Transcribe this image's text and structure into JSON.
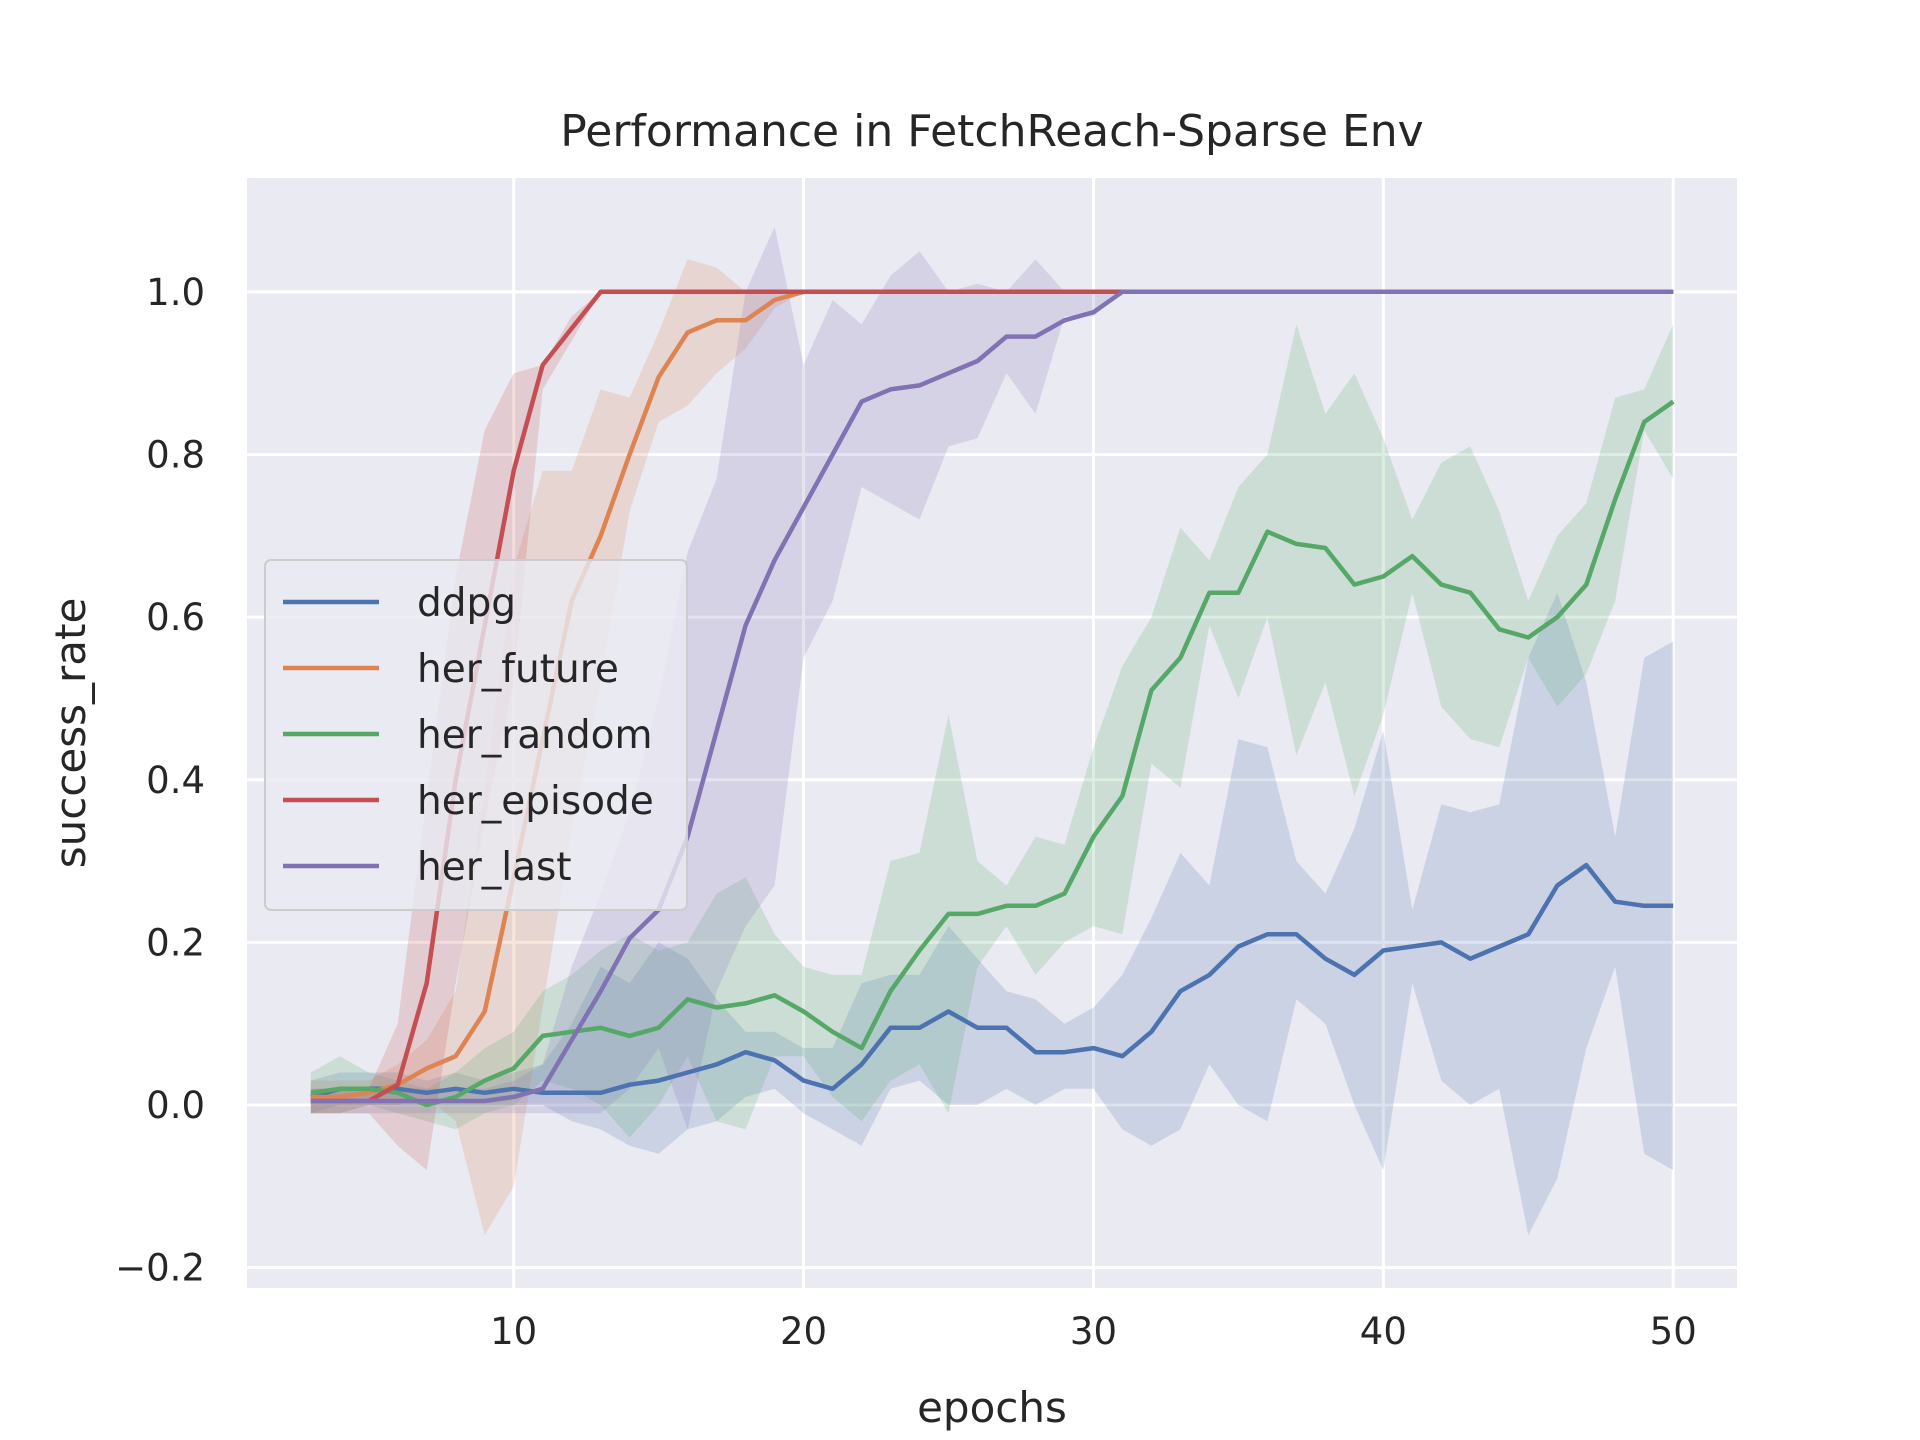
{
  "chart_data": {
    "type": "line",
    "title": "Performance in FetchReach-Sparse Env",
    "xlabel": "epochs",
    "ylabel": "success_rate",
    "xlim": [
      0.8,
      52.2
    ],
    "ylim": [
      -0.225,
      1.14
    ],
    "xticks": [
      10,
      20,
      30,
      40,
      50
    ],
    "yticks": [
      -0.2,
      0.0,
      0.2,
      0.4,
      0.6,
      0.8,
      1.0
    ],
    "ytick_labels": [
      "−0.2",
      "0.0",
      "0.2",
      "0.4",
      "0.6",
      "0.8",
      "1.0"
    ],
    "grid": true,
    "legend_position": "center-left",
    "x": [
      3,
      4,
      5,
      6,
      7,
      8,
      9,
      10,
      11,
      12,
      13,
      14,
      15,
      16,
      17,
      18,
      19,
      20,
      21,
      22,
      23,
      24,
      25,
      26,
      27,
      28,
      29,
      30,
      31,
      32,
      33,
      34,
      35,
      36,
      37,
      38,
      39,
      40,
      41,
      42,
      43,
      44,
      45,
      46,
      47,
      48,
      49,
      50
    ],
    "series": [
      {
        "name": "ddpg",
        "color": "#4c72b0",
        "values": [
          0.01,
          0.02,
          0.02,
          0.02,
          0.015,
          0.02,
          0.015,
          0.02,
          0.015,
          0.015,
          0.015,
          0.025,
          0.03,
          0.04,
          0.05,
          0.065,
          0.055,
          0.03,
          0.02,
          0.05,
          0.095,
          0.095,
          0.115,
          0.095,
          0.095,
          0.065,
          0.065,
          0.07,
          0.06,
          0.09,
          0.14,
          0.16,
          0.195,
          0.21,
          0.21,
          0.18,
          0.16,
          0.19,
          0.195,
          0.2,
          0.18,
          0.195,
          0.21,
          0.27,
          0.295,
          0.25,
          0.245,
          0.245
        ],
        "lower": [
          -0.01,
          0.0,
          0.0,
          0.0,
          0.0,
          0.0,
          0.0,
          0.0,
          0.0,
          -0.02,
          -0.03,
          -0.05,
          -0.06,
          -0.03,
          -0.02,
          0.01,
          0.02,
          -0.01,
          -0.03,
          -0.05,
          0.02,
          0.03,
          0.0,
          0.0,
          0.02,
          0.0,
          0.02,
          0.02,
          -0.03,
          -0.05,
          -0.03,
          0.05,
          0.0,
          -0.02,
          0.13,
          0.1,
          0.0,
          -0.08,
          0.15,
          0.03,
          0.0,
          0.02,
          -0.16,
          -0.09,
          0.07,
          0.17,
          -0.06,
          -0.08
        ],
        "upper": [
          0.03,
          0.04,
          0.04,
          0.04,
          0.03,
          0.04,
          0.03,
          0.04,
          0.05,
          0.1,
          0.17,
          0.15,
          0.2,
          0.18,
          0.13,
          0.09,
          0.09,
          0.07,
          0.07,
          0.15,
          0.16,
          0.16,
          0.22,
          0.18,
          0.14,
          0.13,
          0.1,
          0.12,
          0.16,
          0.23,
          0.31,
          0.27,
          0.45,
          0.44,
          0.3,
          0.26,
          0.34,
          0.46,
          0.24,
          0.37,
          0.36,
          0.37,
          0.55,
          0.63,
          0.52,
          0.33,
          0.55,
          0.57
        ]
      },
      {
        "name": "her_future",
        "color": "#dd8452",
        "values": [
          0.01,
          0.01,
          0.015,
          0.025,
          0.045,
          0.06,
          0.115,
          0.28,
          0.45,
          0.62,
          0.7,
          0.8,
          0.895,
          0.95,
          0.965,
          0.965,
          0.99,
          1.0,
          1.0,
          1.0,
          1.0,
          1.0,
          1.0,
          1.0,
          1.0,
          1.0,
          1.0,
          1.0,
          1.0,
          1.0,
          1.0,
          1.0,
          1.0,
          1.0,
          1.0,
          1.0,
          1.0,
          1.0,
          1.0,
          1.0,
          1.0,
          1.0,
          1.0,
          1.0,
          1.0,
          1.0,
          1.0,
          1.0
        ],
        "lower": [
          -0.01,
          -0.01,
          0.0,
          0.0,
          0.01,
          -0.02,
          -0.16,
          -0.1,
          0.12,
          0.34,
          0.52,
          0.73,
          0.84,
          0.86,
          0.9,
          0.93,
          0.98,
          1.0,
          1.0,
          1.0,
          1.0,
          1.0,
          1.0,
          1.0,
          1.0,
          1.0,
          1.0,
          1.0,
          1.0,
          1.0,
          1.0,
          1.0,
          1.0,
          1.0,
          1.0,
          1.0,
          1.0,
          1.0,
          1.0,
          1.0,
          1.0,
          1.0,
          1.0,
          1.0,
          1.0,
          1.0,
          1.0,
          1.0
        ],
        "upper": [
          0.03,
          0.03,
          0.03,
          0.05,
          0.08,
          0.14,
          0.39,
          0.66,
          0.78,
          0.78,
          0.88,
          0.87,
          0.95,
          1.04,
          1.03,
          1.0,
          1.0,
          1.0,
          1.0,
          1.0,
          1.0,
          1.0,
          1.0,
          1.0,
          1.0,
          1.0,
          1.0,
          1.0,
          1.0,
          1.0,
          1.0,
          1.0,
          1.0,
          1.0,
          1.0,
          1.0,
          1.0,
          1.0,
          1.0,
          1.0,
          1.0,
          1.0,
          1.0,
          1.0,
          1.0,
          1.0,
          1.0,
          1.0
        ]
      },
      {
        "name": "her_random",
        "color": "#55a868",
        "values": [
          0.015,
          0.02,
          0.02,
          0.015,
          0.0,
          0.01,
          0.03,
          0.045,
          0.085,
          0.09,
          0.095,
          0.085,
          0.095,
          0.13,
          0.12,
          0.125,
          0.135,
          0.115,
          0.09,
          0.07,
          0.14,
          0.19,
          0.235,
          0.235,
          0.245,
          0.245,
          0.26,
          0.33,
          0.38,
          0.51,
          0.55,
          0.63,
          0.63,
          0.705,
          0.69,
          0.685,
          0.64,
          0.65,
          0.675,
          0.64,
          0.63,
          0.585,
          0.575,
          0.6,
          0.64,
          0.745,
          0.84,
          0.865
        ],
        "lower": [
          -0.01,
          -0.01,
          0.0,
          -0.01,
          -0.02,
          -0.03,
          -0.01,
          0.0,
          0.03,
          0.02,
          0.0,
          -0.04,
          0.0,
          0.06,
          -0.02,
          -0.03,
          0.06,
          0.06,
          0.01,
          -0.02,
          0.03,
          0.05,
          -0.01,
          0.17,
          0.22,
          0.16,
          0.2,
          0.22,
          0.21,
          0.42,
          0.39,
          0.59,
          0.5,
          0.6,
          0.43,
          0.52,
          0.38,
          0.48,
          0.63,
          0.49,
          0.45,
          0.44,
          0.55,
          0.49,
          0.53,
          0.62,
          0.83,
          0.77
        ],
        "upper": [
          0.04,
          0.06,
          0.04,
          0.03,
          0.02,
          0.04,
          0.07,
          0.09,
          0.14,
          0.16,
          0.19,
          0.21,
          0.19,
          0.2,
          0.26,
          0.28,
          0.21,
          0.17,
          0.16,
          0.16,
          0.3,
          0.31,
          0.48,
          0.3,
          0.27,
          0.33,
          0.32,
          0.44,
          0.54,
          0.6,
          0.71,
          0.67,
          0.76,
          0.8,
          0.96,
          0.85,
          0.9,
          0.82,
          0.72,
          0.79,
          0.81,
          0.73,
          0.62,
          0.7,
          0.74,
          0.87,
          0.88,
          0.96
        ]
      },
      {
        "name": "her_episode",
        "color": "#c44e52",
        "values": [
          0.005,
          0.005,
          0.005,
          0.025,
          0.15,
          0.4,
          0.59,
          0.78,
          0.91,
          0.955,
          1.0,
          1.0,
          1.0,
          1.0,
          1.0,
          1.0,
          1.0,
          1.0,
          1.0,
          1.0,
          1.0,
          1.0,
          1.0,
          1.0,
          1.0,
          1.0,
          1.0,
          1.0,
          1.0,
          1.0,
          1.0,
          1.0,
          1.0,
          1.0,
          1.0,
          1.0,
          1.0,
          1.0,
          1.0,
          1.0,
          1.0,
          1.0,
          1.0,
          1.0,
          1.0,
          1.0,
          1.0,
          1.0
        ],
        "lower": [
          -0.01,
          -0.01,
          -0.01,
          -0.05,
          -0.08,
          0.15,
          0.35,
          0.52,
          0.88,
          0.94,
          1.0,
          1.0,
          1.0,
          1.0,
          1.0,
          1.0,
          1.0,
          1.0,
          1.0,
          1.0,
          1.0,
          1.0,
          1.0,
          1.0,
          1.0,
          1.0,
          1.0,
          1.0,
          1.0,
          1.0,
          1.0,
          1.0,
          1.0,
          1.0,
          1.0,
          1.0,
          1.0,
          1.0,
          1.0,
          1.0,
          1.0,
          1.0,
          1.0,
          1.0,
          1.0,
          1.0,
          1.0,
          1.0
        ],
        "upper": [
          0.02,
          0.02,
          0.02,
          0.1,
          0.38,
          0.65,
          0.83,
          0.9,
          0.91,
          0.97,
          1.0,
          1.0,
          1.0,
          1.0,
          1.0,
          1.0,
          1.0,
          1.0,
          1.0,
          1.0,
          1.0,
          1.0,
          1.0,
          1.0,
          1.0,
          1.0,
          1.0,
          1.0,
          1.0,
          1.0,
          1.0,
          1.0,
          1.0,
          1.0,
          1.0,
          1.0,
          1.0,
          1.0,
          1.0,
          1.0,
          1.0,
          1.0,
          1.0,
          1.0,
          1.0,
          1.0,
          1.0,
          1.0
        ]
      },
      {
        "name": "her_last",
        "color": "#8172b3",
        "values": [
          0.005,
          0.005,
          0.005,
          0.005,
          0.005,
          0.005,
          0.005,
          0.01,
          0.02,
          0.08,
          0.14,
          0.205,
          0.24,
          0.33,
          0.46,
          0.59,
          0.67,
          0.735,
          0.8,
          0.865,
          0.88,
          0.885,
          0.9,
          0.915,
          0.945,
          0.945,
          0.965,
          0.975,
          1.0,
          1.0,
          1.0,
          1.0,
          1.0,
          1.0,
          1.0,
          1.0,
          1.0,
          1.0,
          1.0,
          1.0,
          1.0,
          1.0,
          1.0,
          1.0,
          1.0,
          1.0,
          1.0,
          1.0
        ],
        "lower": [
          -0.01,
          -0.01,
          -0.01,
          -0.01,
          -0.01,
          -0.01,
          -0.01,
          -0.01,
          -0.01,
          -0.01,
          -0.01,
          0.02,
          0.07,
          -0.03,
          0.14,
          0.22,
          0.27,
          0.55,
          0.62,
          0.76,
          0.74,
          0.72,
          0.81,
          0.82,
          0.9,
          0.85,
          0.97,
          0.97,
          1.0,
          1.0,
          1.0,
          1.0,
          1.0,
          1.0,
          1.0,
          1.0,
          1.0,
          1.0,
          1.0,
          1.0,
          1.0,
          1.0,
          1.0,
          1.0,
          1.0,
          1.0,
          1.0,
          1.0
        ],
        "upper": [
          0.02,
          0.02,
          0.02,
          0.02,
          0.02,
          0.02,
          0.02,
          0.03,
          0.05,
          0.17,
          0.26,
          0.36,
          0.5,
          0.68,
          0.77,
          1.0,
          1.08,
          0.91,
          0.99,
          0.96,
          1.02,
          1.05,
          1.0,
          1.01,
          1.0,
          1.04,
          1.0,
          1.0,
          1.0,
          1.0,
          1.0,
          1.0,
          1.0,
          1.0,
          1.0,
          1.0,
          1.0,
          1.0,
          1.0,
          1.0,
          1.0,
          1.0,
          1.0,
          1.0,
          1.0,
          1.0,
          1.0,
          1.0
        ]
      }
    ]
  }
}
